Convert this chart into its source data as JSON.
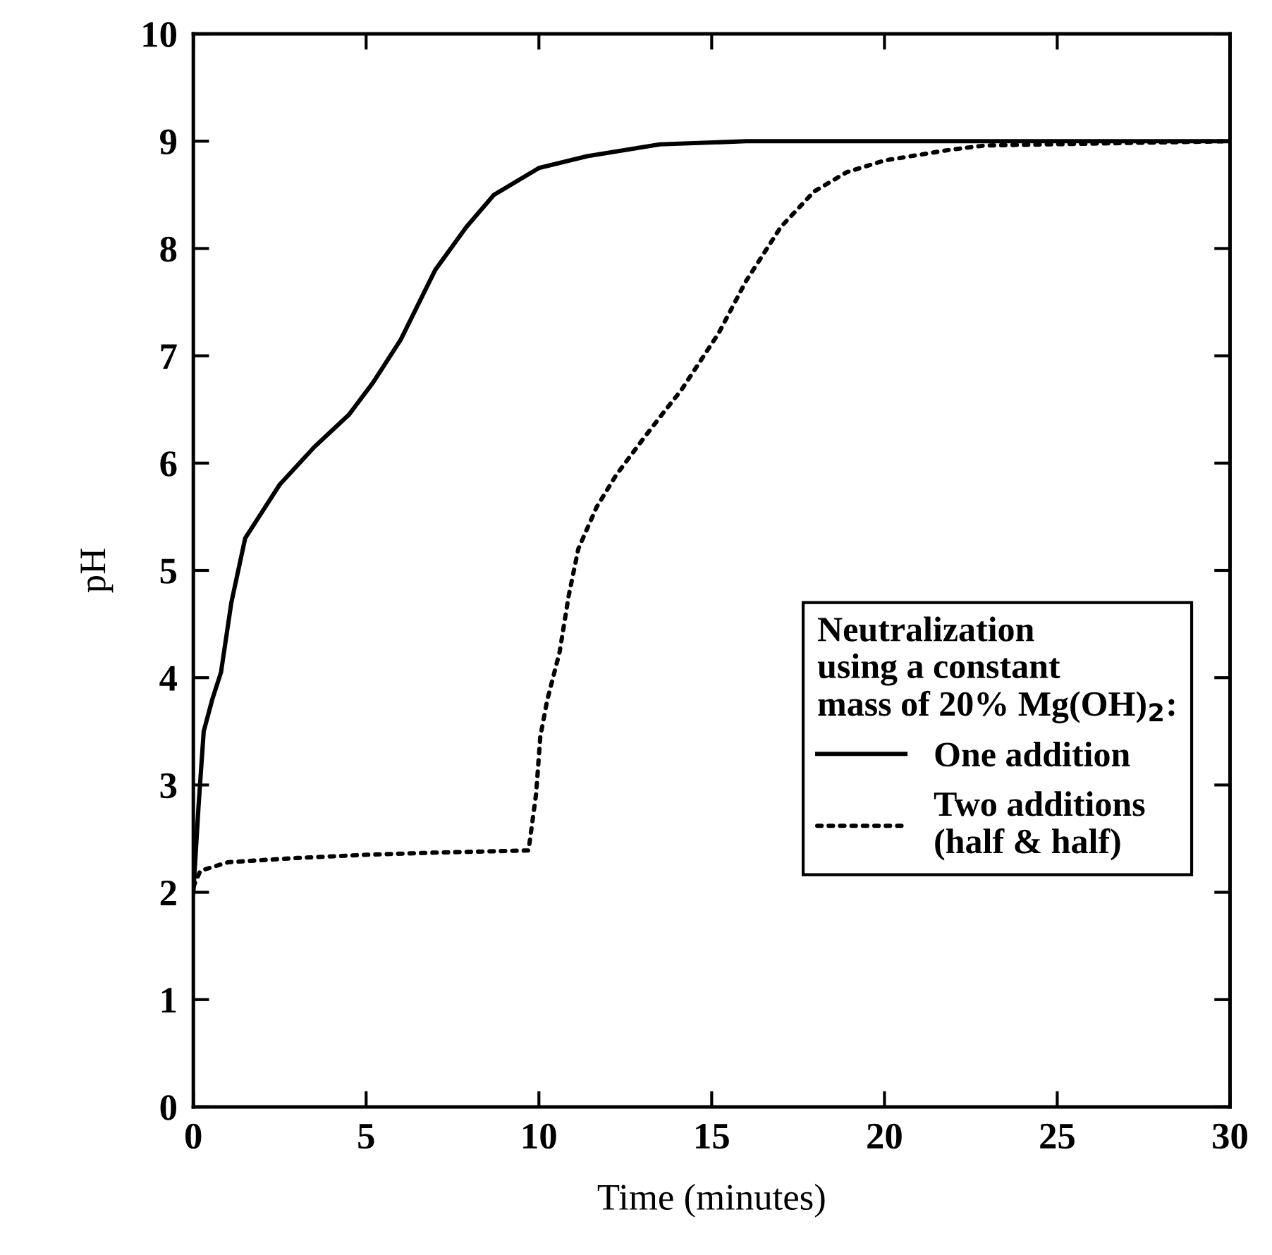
{
  "chart_data": {
    "type": "line",
    "xlabel": "Time (minutes)",
    "ylabel": "pH",
    "legend_title": "Neutralization\nusing a constant\nmass of 20% Mg(OH)$_{2}$:",
    "legend": "bottom right",
    "grid": false,
    "marker": "none",
    "xlim": [
      0,
      30
    ],
    "xticks": [
      0,
      5,
      10,
      15,
      20,
      25,
      30
    ],
    "ylim": [
      0,
      10
    ],
    "yticks": [
      0,
      1,
      2,
      3,
      4,
      5,
      6,
      7,
      8,
      9,
      10
    ],
    "series": [
      {
        "name": "One addition",
        "color": "#000000",
        "line_style": "solid",
        "x": [
          0,
          0.15,
          0.3,
          0.55,
          0.8,
          1.1,
          1.5,
          1.9,
          2.5,
          3.5,
          4.5,
          5.2,
          6,
          7,
          7.9,
          8.7,
          10,
          11.4,
          13.5,
          16,
          30
        ],
        "values": [
          2.0,
          2.8,
          3.5,
          3.8,
          4.05,
          4.7,
          5.3,
          5.5,
          5.8,
          6.15,
          6.45,
          6.75,
          7.15,
          7.8,
          8.2,
          8.5,
          8.75,
          8.86,
          8.97,
          9.0,
          9.0
        ]
      },
      {
        "name": "Two additions\n(half & half)",
        "color": "#000000",
        "line_style": "dotted",
        "x": [
          0,
          0.2,
          1,
          3,
          5,
          7,
          9.7,
          9.92,
          10.04,
          10.24,
          10.6,
          10.86,
          11.14,
          11.67,
          12.24,
          12.98,
          13.7,
          14.12,
          15.2,
          16.0,
          17.0,
          17.96,
          18.9,
          20.0,
          21.9,
          22.9,
          30
        ],
        "values": [
          2.05,
          2.2,
          2.28,
          2.32,
          2.35,
          2.37,
          2.39,
          2.92,
          3.45,
          3.79,
          4.24,
          4.76,
          5.2,
          5.59,
          5.89,
          6.21,
          6.51,
          6.68,
          7.21,
          7.7,
          8.2,
          8.53,
          8.71,
          8.82,
          8.92,
          8.96,
          9.0
        ]
      }
    ]
  }
}
